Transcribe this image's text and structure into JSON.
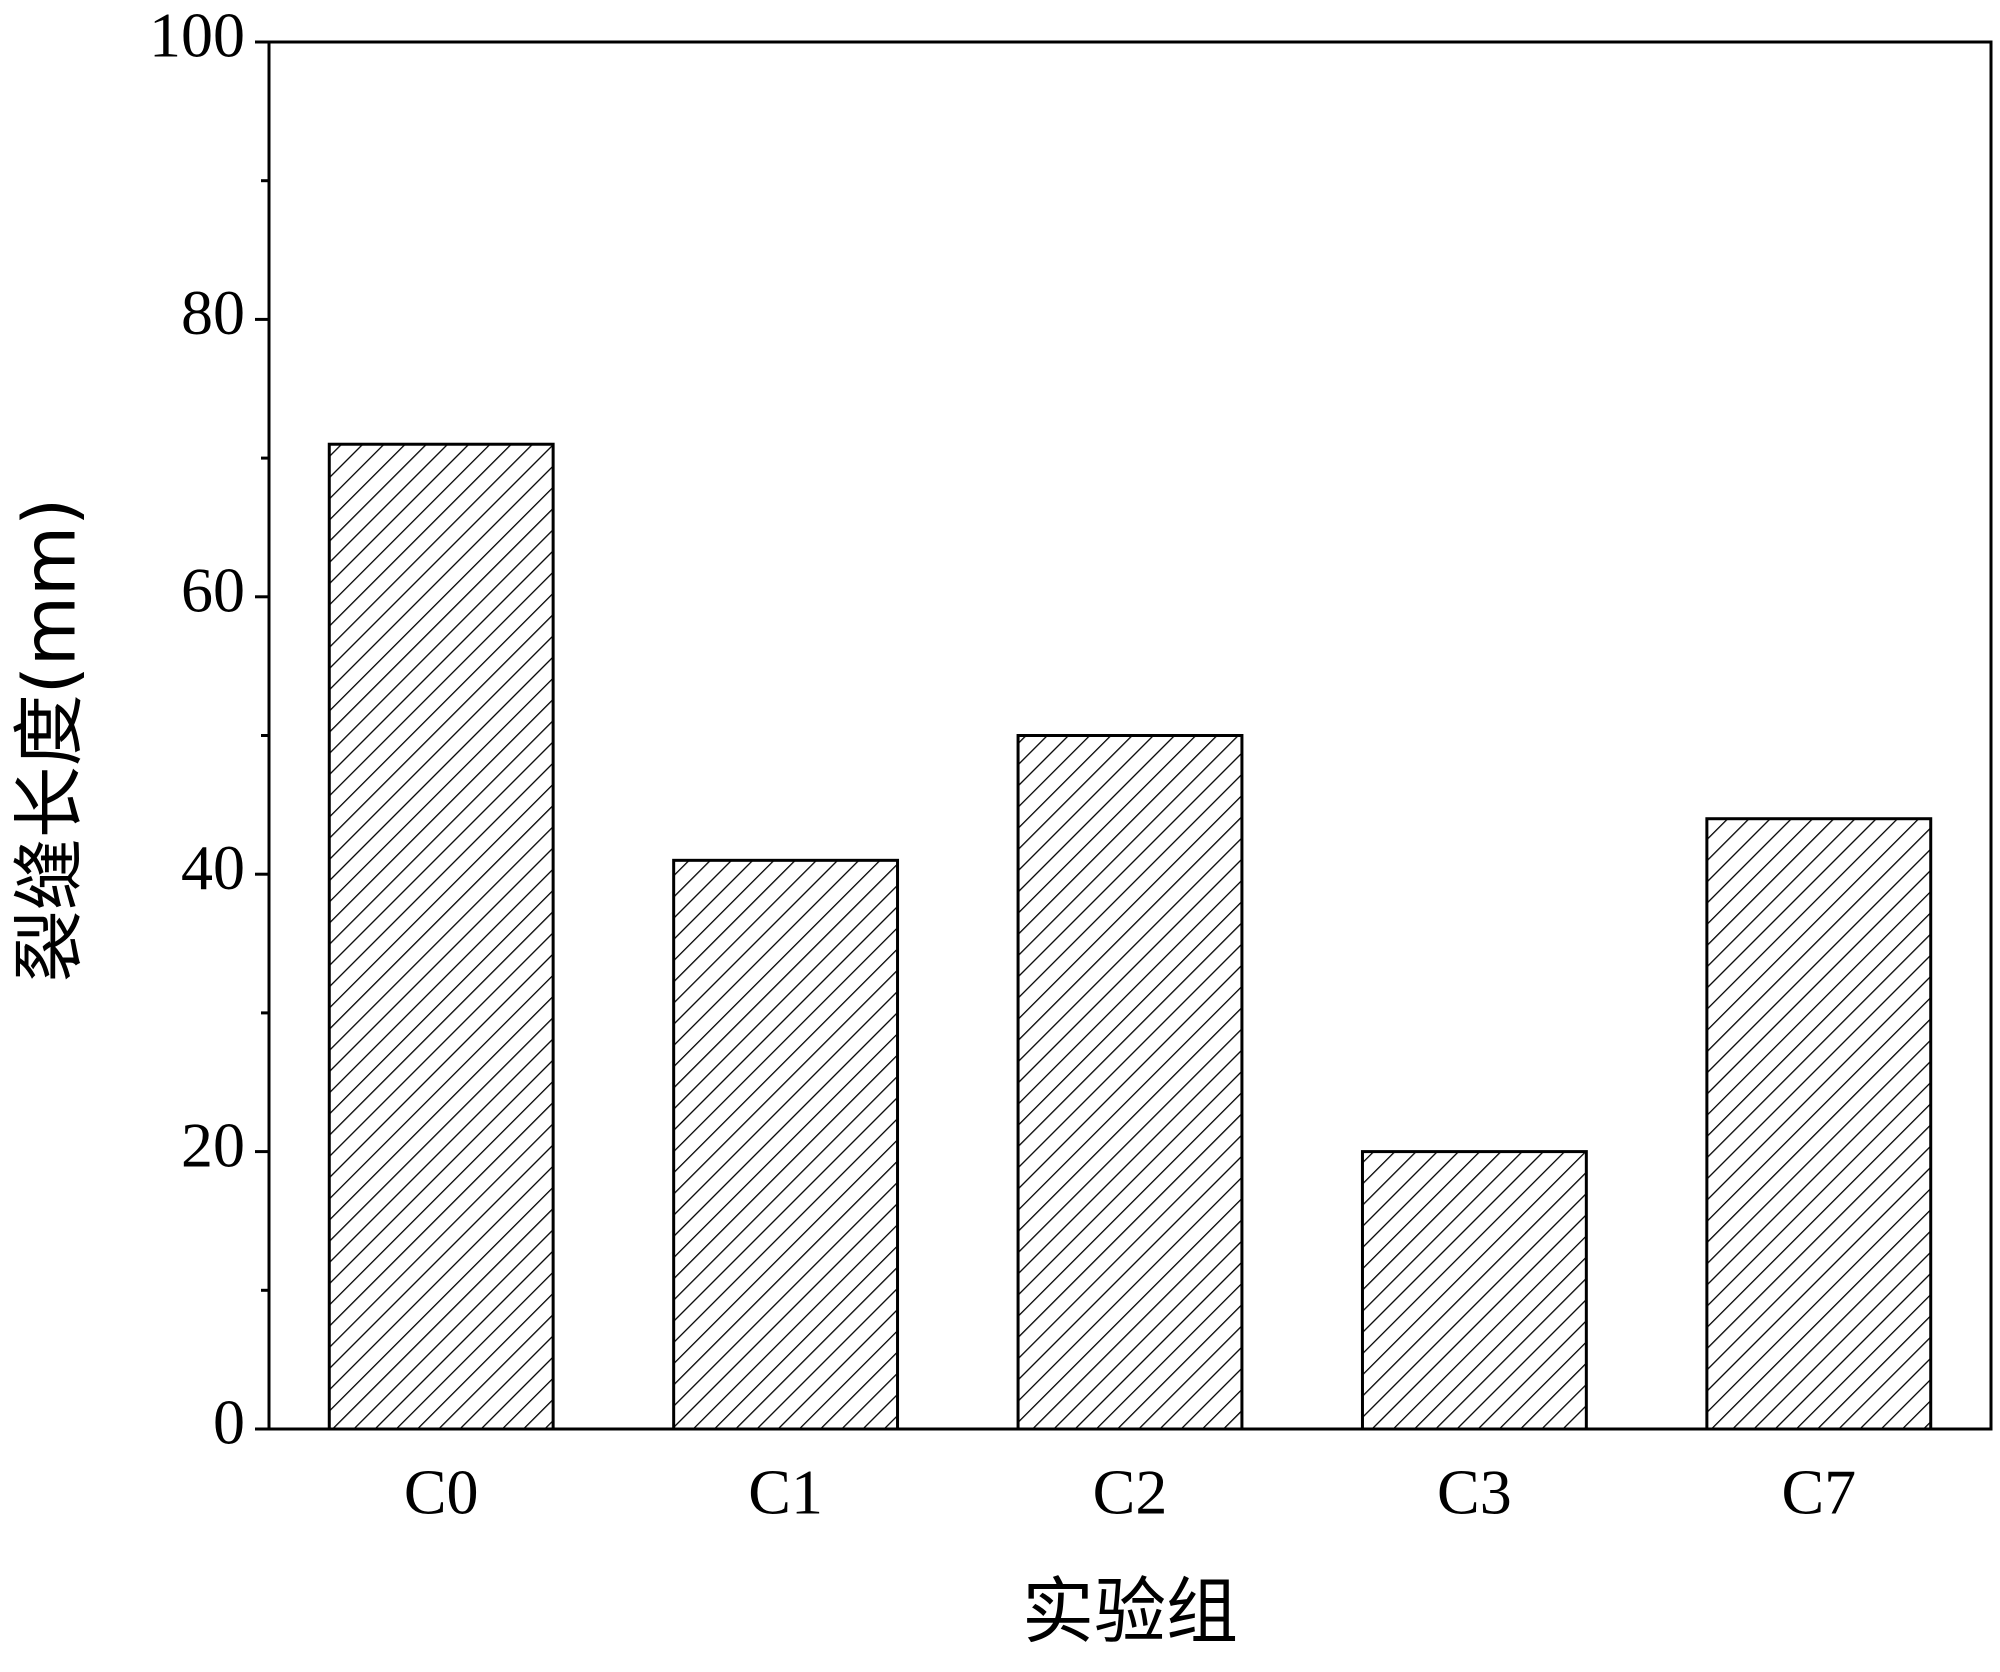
{
  "chart_data": {
    "type": "bar",
    "xlabel": "实验组",
    "ylabel": "裂缝长度(mm)",
    "categories": [
      "C0",
      "C1",
      "C2",
      "C3",
      "C7"
    ],
    "values": [
      71,
      41,
      50,
      20,
      44
    ],
    "color": "#000000",
    "hatch": "diagonal",
    "ylim": [
      0,
      100
    ],
    "yticks": [
      0,
      20,
      40,
      60,
      80,
      100
    ],
    "yminorticks": [
      10,
      30,
      50,
      70,
      90
    ],
    "grid": false
  }
}
